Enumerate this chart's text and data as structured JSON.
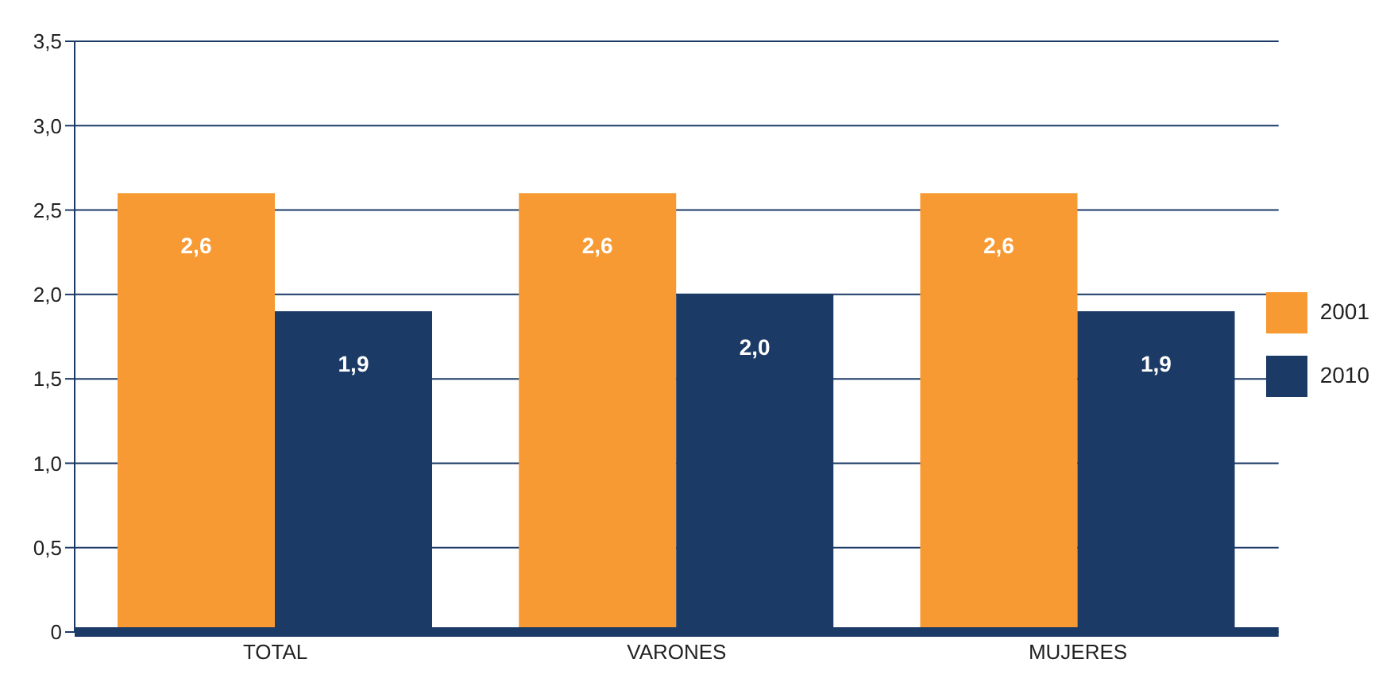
{
  "chart_data": {
    "type": "bar",
    "categories": [
      "TOTAL",
      "VARONES",
      "MUJERES"
    ],
    "series": [
      {
        "name": "2001",
        "color": "#f79a34",
        "values": [
          2.6,
          2.6,
          2.6
        ],
        "value_labels": [
          "2,6",
          "2,6",
          "2,6"
        ]
      },
      {
        "name": "2010",
        "color": "#1b3a66",
        "values": [
          1.9,
          2.0,
          1.9
        ],
        "value_labels": [
          "1,9",
          "2,0",
          "1,9"
        ]
      }
    ],
    "ylim": [
      0,
      3.5
    ],
    "yticks": [
      0,
      {
        "value": 0.5,
        "label": "0,5"
      },
      {
        "value": 1,
        "label": "1,0"
      },
      {
        "value": 1.5,
        "label": "1,5"
      },
      {
        "value": 2,
        "label": "2,0"
      },
      {
        "value": 2.5,
        "label": "2,5"
      },
      {
        "value": 3,
        "label": "3,0"
      },
      {
        "value": 3.5,
        "label": "3,5"
      }
    ],
    "grid": "y",
    "legend": "right"
  }
}
